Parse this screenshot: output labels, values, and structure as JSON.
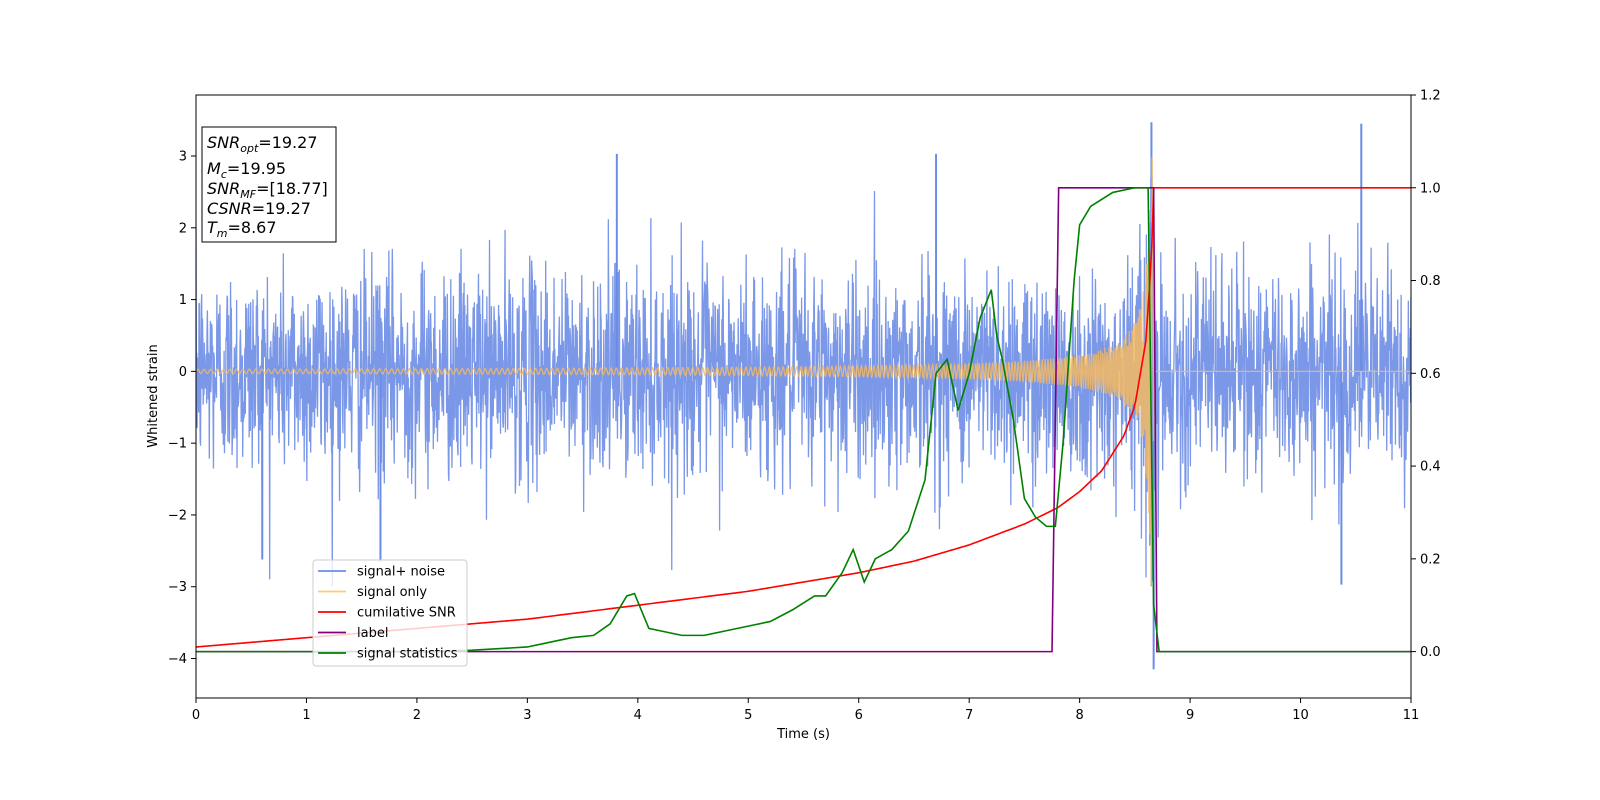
{
  "chart_data": {
    "type": "line",
    "xlabel": "Time (s)",
    "ylabel": "Whitened strain",
    "xlim": [
      0,
      11
    ],
    "ylim_left": [
      -4.55,
      3.85
    ],
    "ylim_right": [
      -0.1,
      1.2
    ],
    "x_ticks": [
      0,
      1,
      2,
      3,
      4,
      5,
      6,
      7,
      8,
      9,
      10,
      11
    ],
    "y_ticks_left": [
      -4,
      -3,
      -2,
      -1,
      0,
      1,
      2,
      3
    ],
    "y_ticks_right": [
      0.0,
      0.2,
      0.4,
      0.6,
      0.8,
      1.0,
      1.2
    ],
    "y_tick_labels_left": [
      "−4",
      "−3",
      "−2",
      "−1",
      "0",
      "1",
      "2",
      "3"
    ],
    "y_tick_labels_right": [
      "0.0",
      "0.2",
      "0.4",
      "0.6",
      "0.8",
      "1.0",
      "1.2"
    ],
    "info_box": [
      {
        "base": "SNR",
        "sub": "opt",
        "value": "=19.27"
      },
      {
        "base": "M",
        "sub": "c",
        "value": "=19.95"
      },
      {
        "base": "SNR",
        "sub": "MF",
        "value": "=[18.77]"
      },
      {
        "base": "CSNR",
        "sub": "",
        "value": "=19.27"
      },
      {
        "base": "T",
        "sub": "m",
        "value": "=8.67"
      }
    ],
    "legend": {
      "placement": "lower-left",
      "entries": [
        {
          "label": "signal+ noise",
          "color": "#6b8ce6"
        },
        {
          "label": "signal only",
          "color": "#ffcc66"
        },
        {
          "label": "cumilative SNR",
          "color": "#ff0000"
        },
        {
          "label": "label",
          "color": "#800080"
        },
        {
          "label": "signal statistics",
          "color": "#008000"
        }
      ]
    },
    "series": [
      {
        "name": "signal+ noise",
        "axis": "left",
        "color": "#6b8ce6",
        "noise_std": 0.72,
        "x_range": [
          0,
          11
        ],
        "spikes": [
          [
            8.65,
            3.47
          ],
          [
            10.55,
            3.45
          ],
          [
            8.67,
            -4.15
          ],
          [
            3.81,
            3.03
          ],
          [
            6.7,
            3.03
          ],
          [
            10.37,
            -2.97
          ],
          [
            0.6,
            -2.62
          ],
          [
            1.67,
            -2.65
          ]
        ]
      },
      {
        "name": "signal only",
        "axis": "left",
        "color": "#f4b860",
        "start_amplitude": 0.03,
        "peak_amplitude": 3.1,
        "merger_time": 8.65,
        "end_time": 8.67,
        "x_range": [
          0,
          11
        ]
      },
      {
        "name": "cumilative SNR",
        "axis": "right",
        "color": "#ff0000",
        "x": [
          0,
          1,
          2,
          3,
          4,
          5,
          6,
          6.5,
          7,
          7.5,
          7.8,
          8.0,
          8.2,
          8.4,
          8.5,
          8.6,
          8.65,
          8.67,
          11
        ],
        "y": [
          0.01,
          0.03,
          0.05,
          0.07,
          0.1,
          0.13,
          0.17,
          0.195,
          0.23,
          0.275,
          0.31,
          0.345,
          0.39,
          0.465,
          0.53,
          0.67,
          0.85,
          1.0,
          1.0
        ]
      },
      {
        "name": "label",
        "axis": "right",
        "color": "#800080",
        "x": [
          0,
          7.75,
          7.81,
          8.67,
          8.7,
          11
        ],
        "y": [
          0,
          0,
          1,
          1,
          0,
          0
        ]
      },
      {
        "name": "signal statistics",
        "axis": "right",
        "color": "#008000",
        "x": [
          0,
          2.0,
          2.5,
          3.0,
          3.2,
          3.4,
          3.6,
          3.75,
          3.9,
          3.97,
          4.1,
          4.2,
          4.4,
          4.6,
          4.8,
          5.0,
          5.2,
          5.4,
          5.6,
          5.7,
          5.85,
          5.95,
          6.05,
          6.15,
          6.3,
          6.45,
          6.6,
          6.7,
          6.8,
          6.9,
          7.0,
          7.1,
          7.2,
          7.25,
          7.3,
          7.4,
          7.5,
          7.6,
          7.7,
          7.78,
          7.85,
          7.95,
          8.0,
          8.1,
          8.3,
          8.5,
          8.62,
          8.67,
          8.72,
          11
        ],
        "y": [
          0,
          0,
          0.003,
          0.01,
          0.02,
          0.03,
          0.035,
          0.06,
          0.12,
          0.125,
          0.05,
          0.045,
          0.035,
          0.035,
          0.045,
          0.055,
          0.065,
          0.09,
          0.12,
          0.12,
          0.17,
          0.22,
          0.15,
          0.2,
          0.22,
          0.26,
          0.37,
          0.6,
          0.63,
          0.52,
          0.6,
          0.72,
          0.78,
          0.68,
          0.63,
          0.5,
          0.33,
          0.29,
          0.27,
          0.27,
          0.45,
          0.8,
          0.92,
          0.96,
          0.99,
          1.0,
          1.0,
          0.1,
          0.0,
          0.0
        ]
      }
    ]
  }
}
